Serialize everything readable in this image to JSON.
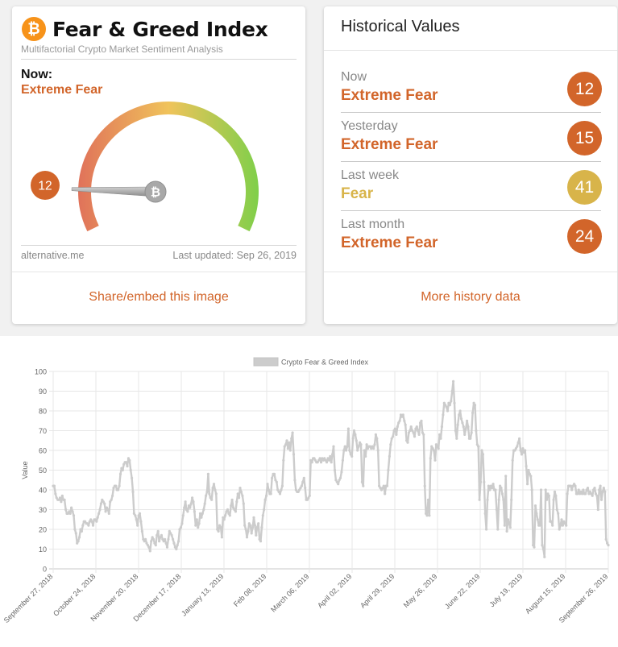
{
  "index_card": {
    "coin_symbol": "₿",
    "title": "Fear & Greed Index",
    "subtitle": "Multifactorial Crypto Market Sentiment Analysis",
    "now_label": "Now:",
    "now_classification": "Extreme Fear",
    "now_value": "12",
    "needle_symbol": "₿",
    "gauge_value": 12,
    "source": "alternative.me",
    "last_updated": "Last updated: Sep 26, 2019",
    "share_link": "Share/embed this image",
    "colors": {
      "brand": "#f7931a",
      "extreme_fear": "#d2652a",
      "fear": "#d8b44a",
      "gauge_start": "#e0725a",
      "gauge_mid": "#f0c35b",
      "gauge_end": "#7fcf4a"
    }
  },
  "history_card": {
    "title": "Historical Values",
    "rows": [
      {
        "period": "Now",
        "classification": "Extreme Fear",
        "value": "12",
        "color": "#d2652a"
      },
      {
        "period": "Yesterday",
        "classification": "Extreme Fear",
        "value": "15",
        "color": "#d2652a"
      },
      {
        "period": "Last week",
        "classification": "Fear",
        "value": "41",
        "color": "#d8b44a"
      },
      {
        "period": "Last month",
        "classification": "Extreme Fear",
        "value": "24",
        "color": "#d2652a"
      }
    ],
    "more_link": "More history data"
  },
  "chart_data": {
    "type": "line",
    "series": [
      {
        "name": "Crypto Fear & Greed Index",
        "color": "#cccccc",
        "values": [
          42,
          42,
          38,
          36,
          35,
          35,
          36,
          34,
          37,
          35,
          35,
          30,
          28,
          28,
          29,
          28,
          31,
          29,
          27,
          20,
          18,
          13,
          14,
          16,
          20,
          19,
          22,
          24,
          24,
          23,
          23,
          22,
          24,
          25,
          24,
          22,
          25,
          25,
          24,
          26,
          28,
          30,
          33,
          35,
          34,
          33,
          29,
          31,
          30,
          28,
          34,
          35,
          37,
          41,
          42,
          42,
          40,
          40,
          42,
          48,
          51,
          50,
          53,
          54,
          54,
          52,
          56,
          55,
          50,
          46,
          39,
          28,
          27,
          25,
          22,
          27,
          28,
          24,
          19,
          15,
          14,
          15,
          13,
          12,
          11,
          9,
          14,
          16,
          15,
          13,
          12,
          17,
          19,
          14,
          16,
          17,
          15,
          14,
          15,
          13,
          11,
          15,
          19,
          18,
          17,
          15,
          13,
          11,
          10,
          12,
          14,
          20,
          21,
          23,
          27,
          31,
          34,
          30,
          29,
          32,
          31,
          33,
          36,
          34,
          29,
          22,
          25,
          21,
          23,
          28,
          26,
          28,
          30,
          33,
          37,
          39,
          48,
          38,
          36,
          35,
          41,
          43,
          40,
          38,
          20,
          19,
          22,
          21,
          16,
          26,
          25,
          27,
          29,
          30,
          28,
          27,
          32,
          35,
          31,
          30,
          29,
          34,
          38,
          36,
          41,
          39,
          37,
          33,
          22,
          20,
          16,
          19,
          23,
          22,
          18,
          21,
          26,
          22,
          17,
          21,
          23,
          15,
          14,
          21,
          27,
          30,
          35,
          37,
          43,
          40,
          38,
          38,
          46,
          48,
          48,
          45,
          44,
          40,
          39,
          38,
          40,
          42,
          55,
          62,
          63,
          65,
          61,
          64,
          60,
          66,
          69,
          58,
          45,
          40,
          39,
          39,
          40,
          41,
          42,
          44,
          46,
          41,
          35,
          35,
          36,
          37,
          55,
          54,
          56,
          56,
          55,
          54,
          54,
          55,
          56,
          54,
          56,
          55,
          56,
          55,
          54,
          56,
          55,
          57,
          54,
          58,
          62,
          50,
          45,
          44,
          43,
          45,
          46,
          49,
          55,
          60,
          62,
          60,
          62,
          71,
          60,
          58,
          57,
          66,
          70,
          68,
          65,
          60,
          62,
          64,
          63,
          44,
          42,
          60,
          57,
          63,
          61,
          62,
          62,
          61,
          62,
          61,
          63,
          68,
          66,
          60,
          42,
          41,
          40,
          41,
          42,
          38,
          42,
          42,
          50,
          57,
          63,
          66,
          67,
          70,
          71,
          68,
          72,
          74,
          75,
          78,
          77,
          78,
          75,
          73,
          65,
          64,
          69,
          70,
          72,
          70,
          69,
          67,
          71,
          72,
          70,
          68,
          74,
          75,
          69,
          68,
          42,
          28,
          27,
          35,
          27,
          56,
          62,
          61,
          60,
          55,
          63,
          62,
          61,
          68,
          66,
          72,
          78,
          84,
          83,
          82,
          80,
          84,
          83,
          85,
          90,
          95,
          84,
          70,
          66,
          73,
          78,
          80,
          76,
          74,
          72,
          68,
          71,
          75,
          72,
          66,
          66,
          69,
          79,
          84,
          83,
          70,
          63,
          62,
          35,
          44,
          60,
          58,
          44,
          28,
          20,
          35,
          42,
          40,
          42,
          41,
          43,
          40,
          40,
          30,
          20,
          35,
          42,
          41,
          38,
          35,
          22,
          47,
          19,
          25,
          23,
          21,
          35,
          55,
          60,
          60,
          61,
          62,
          64,
          66,
          60,
          58,
          61,
          59,
          60,
          52,
          43,
          50,
          48,
          47,
          40,
          12,
          11,
          32,
          28,
          25,
          22,
          22,
          40,
          12,
          10,
          6,
          40,
          35,
          38,
          37,
          24,
          24,
          22,
          35,
          39,
          37,
          30,
          28,
          20,
          22,
          25,
          22,
          24,
          23,
          22,
          38,
          42,
          42,
          42,
          40,
          42,
          43,
          42,
          38,
          38,
          40,
          38,
          39,
          38,
          40,
          38,
          38,
          40,
          41,
          38,
          39,
          38,
          37,
          40,
          41,
          38,
          37,
          30,
          40,
          42,
          35,
          39,
          41,
          39,
          15,
          13,
          12
        ]
      }
    ],
    "x_tick_labels": [
      "September 27, 2018",
      "October 24, 2018",
      "November 20, 2018",
      "December 17, 2018",
      "January 13, 2019",
      "Feb 08, 2019",
      "March 06, 2019",
      "April 02, 2019",
      "April 29, 2019",
      "May 26, 2019",
      "June 22, 2019",
      "July 19, 2019",
      "August 15, 2019",
      "September 26, 2019"
    ],
    "y_ticks": [
      0,
      10,
      20,
      30,
      40,
      50,
      60,
      70,
      80,
      90,
      100
    ],
    "ylabel": "Value",
    "ylim": [
      0,
      100
    ],
    "grid": true,
    "legend": "top-center"
  }
}
